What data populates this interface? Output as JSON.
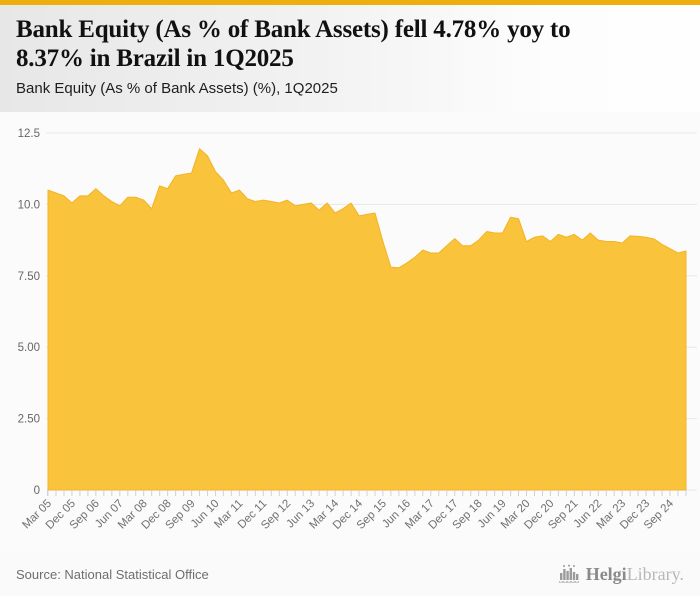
{
  "header": {
    "title_line1": "Bank Equity (As % of Bank Assets) fell 4.78% yoy to",
    "title_line2": "8.37% in Brazil in 1Q2025",
    "subtitle": "Bank Equity (As % of Bank Assets) (%), 1Q2025"
  },
  "footer": {
    "source": "Source: National Statistical Office",
    "brand_primary": "Helgi",
    "brand_secondary": "Library."
  },
  "colors": {
    "accent_bar": "#EFAD0E",
    "area_fill": "#F9C136",
    "area_stroke": "#F4B322",
    "grid": "#E8E8E8",
    "axis_tick": "#CCD3E6",
    "axis_label": "#707070",
    "y_label": "#666666"
  },
  "chart_data": {
    "type": "area",
    "title": "Bank Equity (As % of Bank Assets) (%), 1Q2025",
    "xlabel": "",
    "ylabel": "",
    "ylim": [
      0,
      12.5
    ],
    "grid": true,
    "legend_position": "none",
    "ytick_labels": [
      "12.5",
      "10.0",
      "7.50",
      "5.00",
      "2.50",
      "0"
    ],
    "ytick_values": [
      12.5,
      10.0,
      7.5,
      5.0,
      2.5,
      0
    ],
    "xtick_every": 3,
    "categories": [
      "Mar 05",
      "Jun 05",
      "Sep 05",
      "Dec 05",
      "Mar 06",
      "Jun 06",
      "Sep 06",
      "Dec 06",
      "Mar 07",
      "Jun 07",
      "Sep 07",
      "Dec 07",
      "Mar 08",
      "Jun 08",
      "Sep 08",
      "Dec 08",
      "Mar 09",
      "Jun 09",
      "Sep 09",
      "Dec 09",
      "Mar 10",
      "Jun 10",
      "Sep 10",
      "Dec 10",
      "Mar 11",
      "Jun 11",
      "Sep 11",
      "Dec 11",
      "Mar 12",
      "Jun 12",
      "Sep 12",
      "Dec 12",
      "Mar 13",
      "Jun 13",
      "Sep 13",
      "Dec 13",
      "Mar 14",
      "Jun 14",
      "Sep 14",
      "Dec 14",
      "Mar 15",
      "Jun 15",
      "Sep 15",
      "Dec 15",
      "Mar 16",
      "Jun 16",
      "Sep 16",
      "Dec 16",
      "Mar 17",
      "Jun 17",
      "Sep 17",
      "Dec 17",
      "Mar 18",
      "Jun 18",
      "Sep 18",
      "Dec 18",
      "Mar 19",
      "Jun 19",
      "Sep 19",
      "Dec 19",
      "Mar 20",
      "Jun 20",
      "Sep 20",
      "Dec 20",
      "Mar 21",
      "Jun 21",
      "Sep 21",
      "Dec 21",
      "Mar 22",
      "Jun 22",
      "Sep 22",
      "Dec 22",
      "Mar 23",
      "Jun 23",
      "Sep 23",
      "Dec 23",
      "Mar 24",
      "Jun 24",
      "Sep 24",
      "Dec 24",
      "Mar 25"
    ],
    "values": [
      10.5,
      10.4,
      10.3,
      10.05,
      10.3,
      10.3,
      10.55,
      10.3,
      10.1,
      9.95,
      10.25,
      10.25,
      10.15,
      9.85,
      10.65,
      10.55,
      11.0,
      11.05,
      11.1,
      11.95,
      11.7,
      11.15,
      10.85,
      10.4,
      10.5,
      10.2,
      10.1,
      10.15,
      10.1,
      10.05,
      10.15,
      9.95,
      10.0,
      10.05,
      9.8,
      10.05,
      9.7,
      9.85,
      10.05,
      9.6,
      9.65,
      9.7,
      8.7,
      7.8,
      7.78,
      7.95,
      8.15,
      8.4,
      8.3,
      8.3,
      8.55,
      8.8,
      8.55,
      8.55,
      8.75,
      9.05,
      9.0,
      9.0,
      9.55,
      9.5,
      8.7,
      8.85,
      8.9,
      8.7,
      8.95,
      8.85,
      8.95,
      8.75,
      9.0,
      8.75,
      8.7,
      8.7,
      8.65,
      8.9,
      8.88,
      8.85,
      8.79,
      8.6,
      8.45,
      8.3,
      8.37
    ],
    "series_name": "Bank Equity (As % of Bank Assets) (%)",
    "last_value": 8.37,
    "yoy_change_pct": -4.78
  }
}
